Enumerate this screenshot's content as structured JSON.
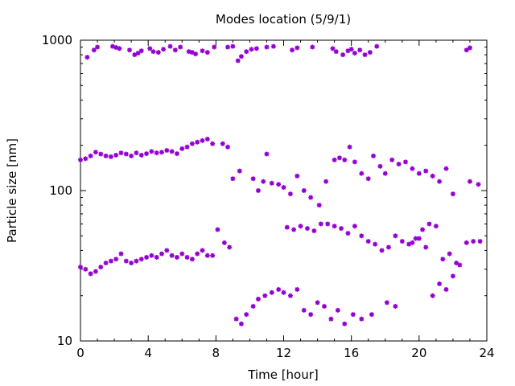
{
  "chart_data": {
    "type": "scatter",
    "title": "Modes location (5/9/1)",
    "xlabel": "Time [hour]",
    "ylabel": "Particle size [nm]",
    "xlim": [
      0,
      24
    ],
    "ylim": [
      10,
      1000
    ],
    "yscale": "log",
    "grid": false,
    "legend": "none",
    "marker_color": "#9400D3",
    "x_ticks": [
      0,
      4,
      8,
      12,
      16,
      20,
      24
    ],
    "x_tick_labels": [
      "0",
      "4",
      "8",
      "12",
      "16",
      "20",
      "24"
    ],
    "y_ticks": [
      10,
      100,
      1000
    ],
    "y_tick_labels": [
      "10",
      "100",
      "1000"
    ],
    "series": [
      {
        "points": [
          [
            0.4,
            770
          ],
          [
            0.8,
            860
          ],
          [
            1.0,
            900
          ],
          [
            1.9,
            910
          ],
          [
            2.1,
            895
          ],
          [
            2.3,
            880
          ],
          [
            2.9,
            860
          ],
          [
            3.2,
            800
          ],
          [
            3.4,
            820
          ],
          [
            3.6,
            850
          ],
          [
            4.1,
            880
          ],
          [
            4.3,
            840
          ],
          [
            4.6,
            830
          ],
          [
            4.9,
            870
          ],
          [
            5.3,
            910
          ],
          [
            5.6,
            860
          ],
          [
            5.9,
            900
          ],
          [
            6.4,
            840
          ],
          [
            6.6,
            830
          ],
          [
            6.8,
            810
          ],
          [
            7.2,
            850
          ],
          [
            7.5,
            830
          ],
          [
            7.9,
            900
          ],
          [
            8.7,
            900
          ],
          [
            9.0,
            910
          ],
          [
            9.3,
            730
          ],
          [
            9.5,
            780
          ],
          [
            9.8,
            840
          ],
          [
            10.1,
            870
          ],
          [
            10.4,
            880
          ],
          [
            11.0,
            900
          ],
          [
            11.4,
            910
          ],
          [
            12.5,
            860
          ],
          [
            12.8,
            890
          ],
          [
            13.7,
            900
          ],
          [
            14.9,
            880
          ],
          [
            15.1,
            840
          ],
          [
            15.5,
            800
          ],
          [
            15.8,
            850
          ],
          [
            16.0,
            870
          ],
          [
            16.2,
            820
          ],
          [
            16.5,
            860
          ],
          [
            16.8,
            800
          ],
          [
            17.1,
            830
          ],
          [
            17.5,
            910
          ],
          [
            22.8,
            860
          ],
          [
            23.0,
            890
          ],
          [
            0.0,
            160
          ],
          [
            0.3,
            163
          ],
          [
            0.6,
            170
          ],
          [
            0.9,
            180
          ],
          [
            1.2,
            175
          ],
          [
            1.5,
            170
          ],
          [
            1.8,
            168
          ],
          [
            2.1,
            172
          ],
          [
            2.4,
            178
          ],
          [
            2.7,
            175
          ],
          [
            3.0,
            170
          ],
          [
            3.3,
            178
          ],
          [
            3.6,
            172
          ],
          [
            3.9,
            176
          ],
          [
            4.2,
            182
          ],
          [
            4.5,
            178
          ],
          [
            4.8,
            180
          ],
          [
            5.1,
            185
          ],
          [
            5.4,
            182
          ],
          [
            5.7,
            176
          ],
          [
            6.0,
            190
          ],
          [
            6.3,
            195
          ],
          [
            6.6,
            205
          ],
          [
            6.9,
            210
          ],
          [
            7.2,
            215
          ],
          [
            7.5,
            220
          ],
          [
            7.8,
            205
          ],
          [
            8.4,
            205
          ],
          [
            8.7,
            195
          ],
          [
            9.0,
            120
          ],
          [
            9.4,
            135
          ],
          [
            10.2,
            120
          ],
          [
            10.5,
            100
          ],
          [
            10.8,
            115
          ],
          [
            11.0,
            175
          ],
          [
            11.3,
            112
          ],
          [
            11.7,
            110
          ],
          [
            12.0,
            105
          ],
          [
            12.4,
            95
          ],
          [
            12.8,
            125
          ],
          [
            13.2,
            100
          ],
          [
            13.6,
            90
          ],
          [
            14.1,
            80
          ],
          [
            14.5,
            115
          ],
          [
            15.0,
            160
          ],
          [
            15.3,
            165
          ],
          [
            15.6,
            160
          ],
          [
            15.9,
            195
          ],
          [
            16.2,
            155
          ],
          [
            16.6,
            130
          ],
          [
            17.0,
            120
          ],
          [
            17.3,
            170
          ],
          [
            17.7,
            145
          ],
          [
            18.0,
            130
          ],
          [
            18.4,
            160
          ],
          [
            18.8,
            150
          ],
          [
            19.2,
            155
          ],
          [
            19.6,
            140
          ],
          [
            20.0,
            130
          ],
          [
            20.4,
            135
          ],
          [
            20.8,
            125
          ],
          [
            21.2,
            115
          ],
          [
            21.6,
            140
          ],
          [
            22.0,
            95
          ],
          [
            23.0,
            115
          ],
          [
            23.5,
            110
          ],
          [
            0.0,
            31
          ],
          [
            0.3,
            30
          ],
          [
            0.6,
            28
          ],
          [
            0.9,
            29
          ],
          [
            1.2,
            31
          ],
          [
            1.5,
            33
          ],
          [
            1.8,
            34
          ],
          [
            2.1,
            35
          ],
          [
            2.4,
            38
          ],
          [
            2.7,
            34
          ],
          [
            3.0,
            33
          ],
          [
            3.3,
            34
          ],
          [
            3.6,
            35
          ],
          [
            3.9,
            36
          ],
          [
            4.2,
            37
          ],
          [
            4.5,
            36
          ],
          [
            4.8,
            38
          ],
          [
            5.1,
            40
          ],
          [
            5.4,
            37
          ],
          [
            5.7,
            36
          ],
          [
            6.0,
            38
          ],
          [
            6.3,
            36
          ],
          [
            6.6,
            35
          ],
          [
            6.9,
            38
          ],
          [
            7.2,
            40
          ],
          [
            7.5,
            37
          ],
          [
            7.8,
            37
          ],
          [
            8.1,
            55
          ],
          [
            8.5,
            45
          ],
          [
            8.8,
            42
          ],
          [
            9.2,
            14
          ],
          [
            9.5,
            13
          ],
          [
            9.8,
            15
          ],
          [
            10.2,
            17
          ],
          [
            10.5,
            19
          ],
          [
            10.9,
            20
          ],
          [
            11.3,
            21
          ],
          [
            11.7,
            22
          ],
          [
            12.0,
            21
          ],
          [
            12.4,
            20
          ],
          [
            12.8,
            22
          ],
          [
            13.2,
            16
          ],
          [
            13.6,
            15
          ],
          [
            14.0,
            18
          ],
          [
            14.4,
            17
          ],
          [
            14.8,
            14
          ],
          [
            15.2,
            16
          ],
          [
            15.6,
            13
          ],
          [
            16.1,
            15
          ],
          [
            16.6,
            14
          ],
          [
            17.2,
            15
          ],
          [
            18.1,
            18
          ],
          [
            18.6,
            17
          ],
          [
            19.6,
            45
          ],
          [
            20.0,
            48
          ],
          [
            20.4,
            42
          ],
          [
            20.8,
            20
          ],
          [
            21.2,
            24
          ],
          [
            21.6,
            22
          ],
          [
            22.0,
            27
          ],
          [
            22.4,
            32
          ],
          [
            22.8,
            45
          ],
          [
            23.2,
            46
          ],
          [
            23.6,
            46
          ],
          [
            12.2,
            57
          ],
          [
            12.6,
            55
          ],
          [
            13.0,
            58
          ],
          [
            13.4,
            56
          ],
          [
            13.8,
            54
          ],
          [
            14.2,
            60
          ],
          [
            14.6,
            60
          ],
          [
            15.0,
            58
          ],
          [
            15.4,
            56
          ],
          [
            15.8,
            52
          ],
          [
            16.2,
            58
          ],
          [
            16.6,
            50
          ],
          [
            17.0,
            46
          ],
          [
            17.4,
            44
          ],
          [
            17.8,
            40
          ],
          [
            18.2,
            42
          ],
          [
            18.6,
            50
          ],
          [
            19.0,
            46
          ],
          [
            19.4,
            44
          ],
          [
            19.8,
            48
          ],
          [
            20.2,
            55
          ],
          [
            20.6,
            60
          ],
          [
            21.0,
            58
          ],
          [
            21.4,
            35
          ],
          [
            21.8,
            38
          ],
          [
            22.2,
            33
          ]
        ]
      }
    ]
  }
}
